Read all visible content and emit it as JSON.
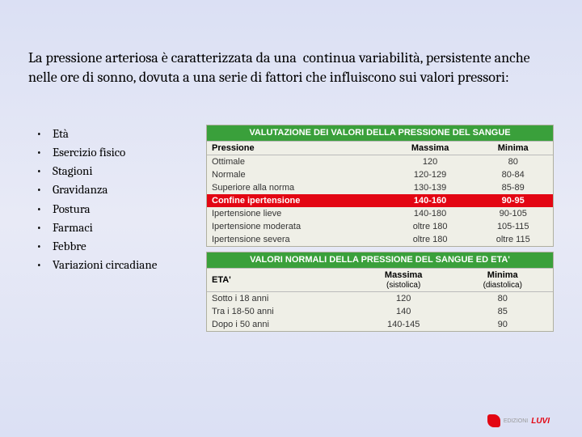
{
  "intro": "La pressione arteriosa è caratterizzata da una  continua variabilità, persistente anche nelle ore di sonno, dovuta a una serie di fattori che influiscono sui valori pressori:",
  "bullets": [
    "Età",
    "Esercizio fisico",
    "Stagioni",
    "Gravidanza",
    "Postura",
    "Farmaci",
    "Febbre",
    "Variazioni circadiane"
  ],
  "table1": {
    "title": "VALUTAZIONE DEI VALORI DELLA PRESSIONE DEL SANGUE",
    "headers": [
      "Pressione",
      "Massima",
      "Minima"
    ],
    "rows": [
      {
        "label": "Ottimale",
        "max": "120",
        "min": "80",
        "highlight": false
      },
      {
        "label": "Normale",
        "max": "120-129",
        "min": "80-84",
        "highlight": false
      },
      {
        "label": "Superiore alla norma",
        "max": "130-139",
        "min": "85-89",
        "highlight": false
      },
      {
        "label": "Confine ipertensione",
        "max": "140-160",
        "min": "90-95",
        "highlight": true
      },
      {
        "label": "Ipertensione lieve",
        "max": "140-180",
        "min": "90-105",
        "highlight": false
      },
      {
        "label": "Ipertensione moderata",
        "max": "oltre 180",
        "min": "105-115",
        "highlight": false
      },
      {
        "label": "Ipertensione severa",
        "max": "oltre 180",
        "min": "oltre 115",
        "highlight": false
      }
    ]
  },
  "table2": {
    "title": "VALORI NORMALI DELLA PRESSIONE DEL SANGUE ED ETA'",
    "headers": [
      "ETA'",
      "Massima",
      "Minima"
    ],
    "subheaders": [
      "",
      "(sistolica)",
      "(diastolica)"
    ],
    "rows": [
      {
        "label": "Sotto i 18 anni",
        "max": "120",
        "min": "80"
      },
      {
        "label": "Tra i 18-50 anni",
        "max": "140",
        "min": "85"
      },
      {
        "label": "Dopo i 50 anni",
        "max": "140-145",
        "min": "90"
      }
    ]
  },
  "logo_text": "LUVI",
  "colors": {
    "green": "#3aa03b",
    "red": "#e30613"
  }
}
